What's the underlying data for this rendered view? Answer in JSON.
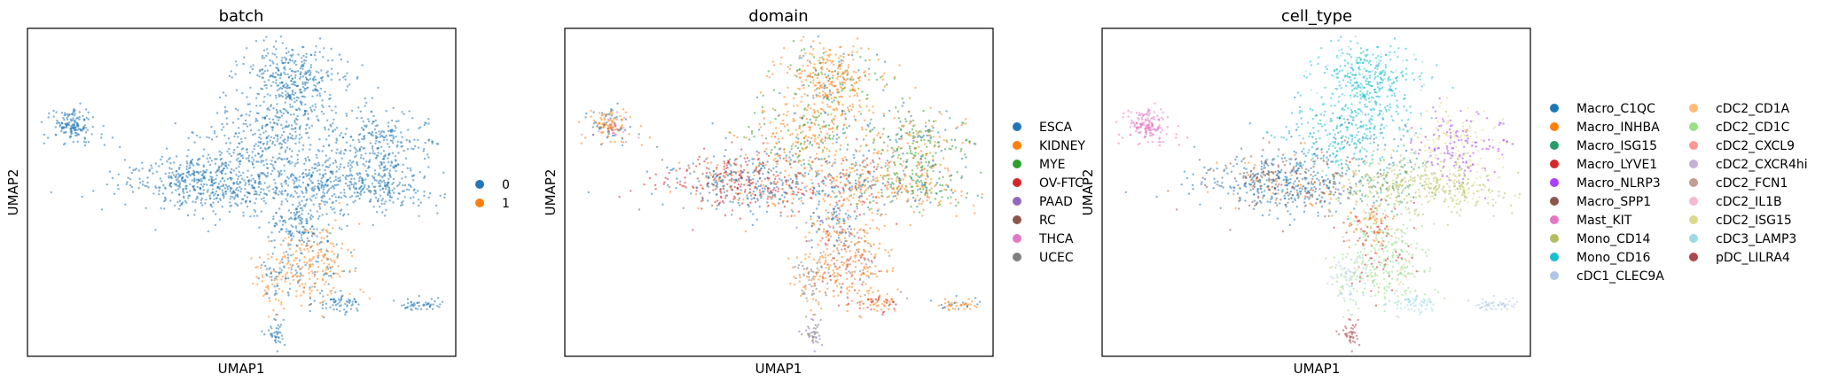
{
  "chart_data": [
    {
      "type": "scatter",
      "title": "batch",
      "xlabel": "UMAP1",
      "ylabel": "UMAP2",
      "grid": false,
      "legend_position": "right",
      "series": [
        {
          "name": "0",
          "color": "#1f77b4"
        },
        {
          "name": "1",
          "color": "#ff7f0e"
        }
      ]
    },
    {
      "type": "scatter",
      "title": "domain",
      "xlabel": "UMAP1",
      "ylabel": "UMAP2",
      "grid": false,
      "legend_position": "right",
      "series": [
        {
          "name": "ESCA",
          "color": "#1f77b4"
        },
        {
          "name": "KIDNEY",
          "color": "#ff7f0e"
        },
        {
          "name": "MYE",
          "color": "#2ca02c"
        },
        {
          "name": "OV-FTC",
          "color": "#d62728"
        },
        {
          "name": "PAAD",
          "color": "#9467bd"
        },
        {
          "name": "RC",
          "color": "#8c564b"
        },
        {
          "name": "THCA",
          "color": "#e377c2"
        },
        {
          "name": "UCEC",
          "color": "#7f7f7f"
        }
      ]
    },
    {
      "type": "scatter",
      "title": "cell_type",
      "xlabel": "UMAP1",
      "ylabel": "UMAP2",
      "grid": false,
      "legend_position": "right",
      "series": [
        {
          "name": "Macro_C1QC",
          "color": "#1f77b4"
        },
        {
          "name": "Macro_INHBA",
          "color": "#ff7f0e"
        },
        {
          "name": "Macro_ISG15",
          "color": "#279e68"
        },
        {
          "name": "Macro_LYVE1",
          "color": "#d62728"
        },
        {
          "name": "Macro_NLRP3",
          "color": "#aa40fc"
        },
        {
          "name": "Macro_SPP1",
          "color": "#8c564b"
        },
        {
          "name": "Mast_KIT",
          "color": "#e377c2"
        },
        {
          "name": "Mono_CD14",
          "color": "#b5bd61"
        },
        {
          "name": "Mono_CD16",
          "color": "#17becf"
        },
        {
          "name": "cDC1_CLEC9A",
          "color": "#aec7e8"
        },
        {
          "name": "cDC2_CD1A",
          "color": "#ffbb78"
        },
        {
          "name": "cDC2_CD1C",
          "color": "#98df8a"
        },
        {
          "name": "cDC2_CXCL9",
          "color": "#ff9896"
        },
        {
          "name": "cDC2_CXCR4hi",
          "color": "#c5b0d5"
        },
        {
          "name": "cDC2_FCN1",
          "color": "#c49c94"
        },
        {
          "name": "cDC2_IL1B",
          "color": "#f7b6d2"
        },
        {
          "name": "cDC2_ISG15",
          "color": "#dbdb8d"
        },
        {
          "name": "cDC3_LAMP3",
          "color": "#9edae5"
        },
        {
          "name": "pDC_LILRA4",
          "color": "#ad494a"
        }
      ]
    }
  ]
}
